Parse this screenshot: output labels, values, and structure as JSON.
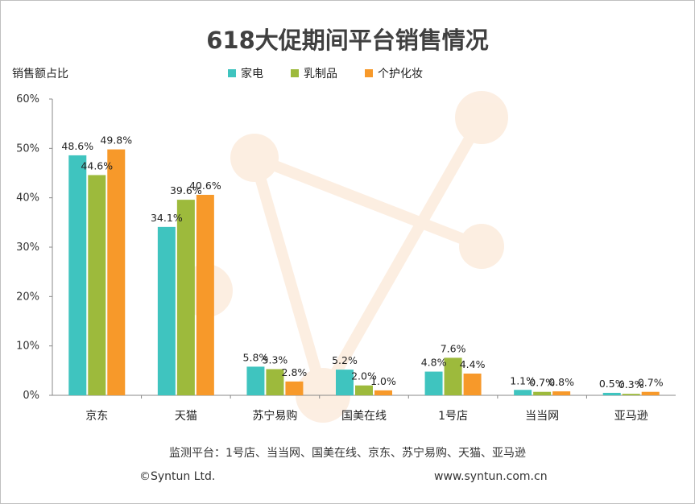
{
  "chart_data": {
    "type": "bar",
    "title": "618大促期间平台销售情况",
    "ylabel": "销售额占比",
    "ylim": [
      0,
      60
    ],
    "yticks": [
      "0%",
      "10%",
      "20%",
      "30%",
      "40%",
      "50%",
      "60%"
    ],
    "categories": [
      "京东",
      "天猫",
      "苏宁易购",
      "国美在线",
      "1号店",
      "当当网",
      "亚马逊"
    ],
    "series": [
      {
        "name": "家电",
        "color": "#3fc4bf",
        "values": [
          48.6,
          34.1,
          5.8,
          5.2,
          4.8,
          1.1,
          0.5
        ],
        "labels": [
          "48.6%",
          "34.1%",
          "5.8%",
          "5.2%",
          "4.8%",
          "1.1%",
          "0.5%"
        ]
      },
      {
        "name": "乳制品",
        "color": "#9dba3c",
        "values": [
          44.6,
          39.6,
          5.3,
          2.0,
          7.6,
          0.7,
          0.3
        ],
        "labels": [
          "44.6%",
          "39.6%",
          "5.3%",
          "2.0%",
          "7.6%",
          "0.7%",
          "0.3%"
        ]
      },
      {
        "name": "个护化妆",
        "color": "#f7992a",
        "values": [
          49.8,
          40.6,
          2.8,
          1.0,
          4.4,
          0.8,
          0.7
        ],
        "labels": [
          "49.8%",
          "40.6%",
          "2.8%",
          "1.0%",
          "4.4%",
          "0.8%",
          "0.7%"
        ]
      }
    ],
    "legend": "top-center"
  },
  "footer": {
    "platforms": "监测平台：1号店、当当网、国美在线、京东、苏宁易购、天猫、亚马逊",
    "copyright": "©Syntun Ltd.",
    "website": "www.syntun.com.cn"
  }
}
